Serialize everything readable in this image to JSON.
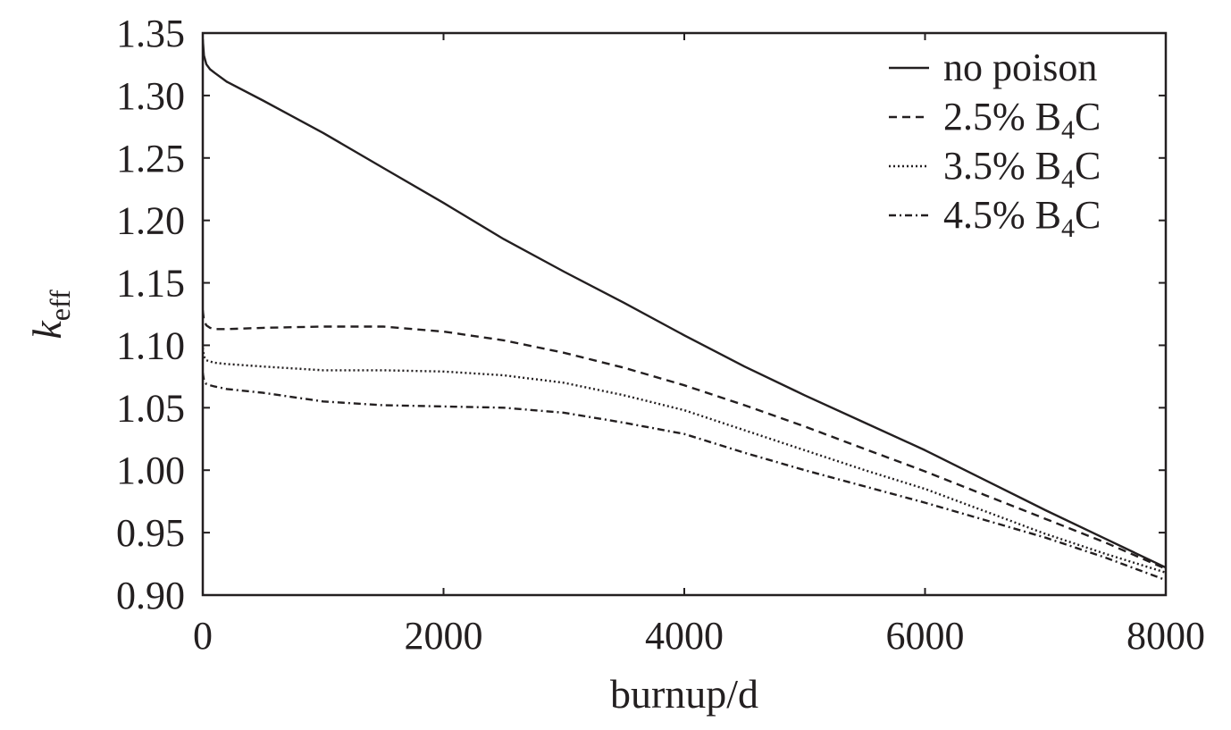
{
  "chart_data": {
    "type": "line",
    "title": "",
    "xlabel": "burnup/d",
    "ylabel": {
      "main": "k",
      "sub": "eff"
    },
    "xlim": [
      0,
      8000
    ],
    "ylim": [
      0.9,
      1.35
    ],
    "x_ticks": [
      "0",
      "2000",
      "4000",
      "6000",
      "8000"
    ],
    "y_ticks": [
      "0.90",
      "0.95",
      "1.00",
      "1.05",
      "1.10",
      "1.15",
      "1.20",
      "1.25",
      "1.30",
      "1.35"
    ],
    "grid": false,
    "legend_position": "top-right",
    "series": [
      {
        "name": "no poison",
        "legend_main": "no poison",
        "legend_sub": "",
        "legend_tail": "",
        "dash": "solid",
        "x": [
          0,
          10,
          30,
          60,
          100,
          200,
          500,
          1000,
          1500,
          2000,
          2500,
          3000,
          3500,
          4000,
          4500,
          5000,
          5500,
          6000,
          6500,
          7000,
          7500,
          8000
        ],
        "y": [
          1.345,
          1.332,
          1.325,
          1.321,
          1.318,
          1.311,
          1.296,
          1.27,
          1.242,
          1.214,
          1.185,
          1.159,
          1.134,
          1.108,
          1.083,
          1.06,
          1.038,
          1.016,
          0.992,
          0.968,
          0.945,
          0.922
        ]
      },
      {
        "name": "2.5% B4C",
        "legend_main": "2.5% B",
        "legend_sub": "4",
        "legend_tail": "C",
        "dash": "dashed",
        "x": [
          0,
          10,
          30,
          60,
          100,
          200,
          500,
          1000,
          1500,
          2000,
          2500,
          3000,
          3500,
          4000,
          4500,
          5000,
          5500,
          6000,
          6500,
          7000,
          7500,
          8000
        ],
        "y": [
          1.128,
          1.12,
          1.116,
          1.114,
          1.113,
          1.113,
          1.114,
          1.115,
          1.115,
          1.111,
          1.104,
          1.094,
          1.082,
          1.068,
          1.052,
          1.035,
          1.017,
          0.999,
          0.98,
          0.961,
          0.942,
          0.921
        ]
      },
      {
        "name": "3.5% B4C",
        "legend_main": "3.5% B",
        "legend_sub": "4",
        "legend_tail": "C",
        "dash": "dotted",
        "x": [
          0,
          10,
          30,
          60,
          100,
          200,
          500,
          1000,
          1500,
          2000,
          2500,
          3000,
          3500,
          4000,
          4500,
          5000,
          5500,
          6000,
          6500,
          7000,
          7500,
          8000
        ],
        "y": [
          1.098,
          1.091,
          1.088,
          1.087,
          1.086,
          1.085,
          1.083,
          1.08,
          1.08,
          1.079,
          1.076,
          1.07,
          1.06,
          1.048,
          1.032,
          1.016,
          1.0,
          0.985,
          0.967,
          0.949,
          0.933,
          0.918
        ]
      },
      {
        "name": "4.5% B4C",
        "legend_main": "4.5% B",
        "legend_sub": "4",
        "legend_tail": "C",
        "dash": "dashdot",
        "x": [
          0,
          10,
          30,
          60,
          100,
          200,
          500,
          1000,
          1500,
          2000,
          2500,
          3000,
          3500,
          4000,
          4500,
          5000,
          5500,
          6000,
          6500,
          7000,
          7500,
          8000
        ],
        "y": [
          1.078,
          1.072,
          1.069,
          1.068,
          1.067,
          1.065,
          1.062,
          1.055,
          1.052,
          1.051,
          1.05,
          1.046,
          1.038,
          1.029,
          1.014,
          1.0,
          0.987,
          0.974,
          0.96,
          0.946,
          0.93,
          0.912
        ]
      }
    ]
  }
}
